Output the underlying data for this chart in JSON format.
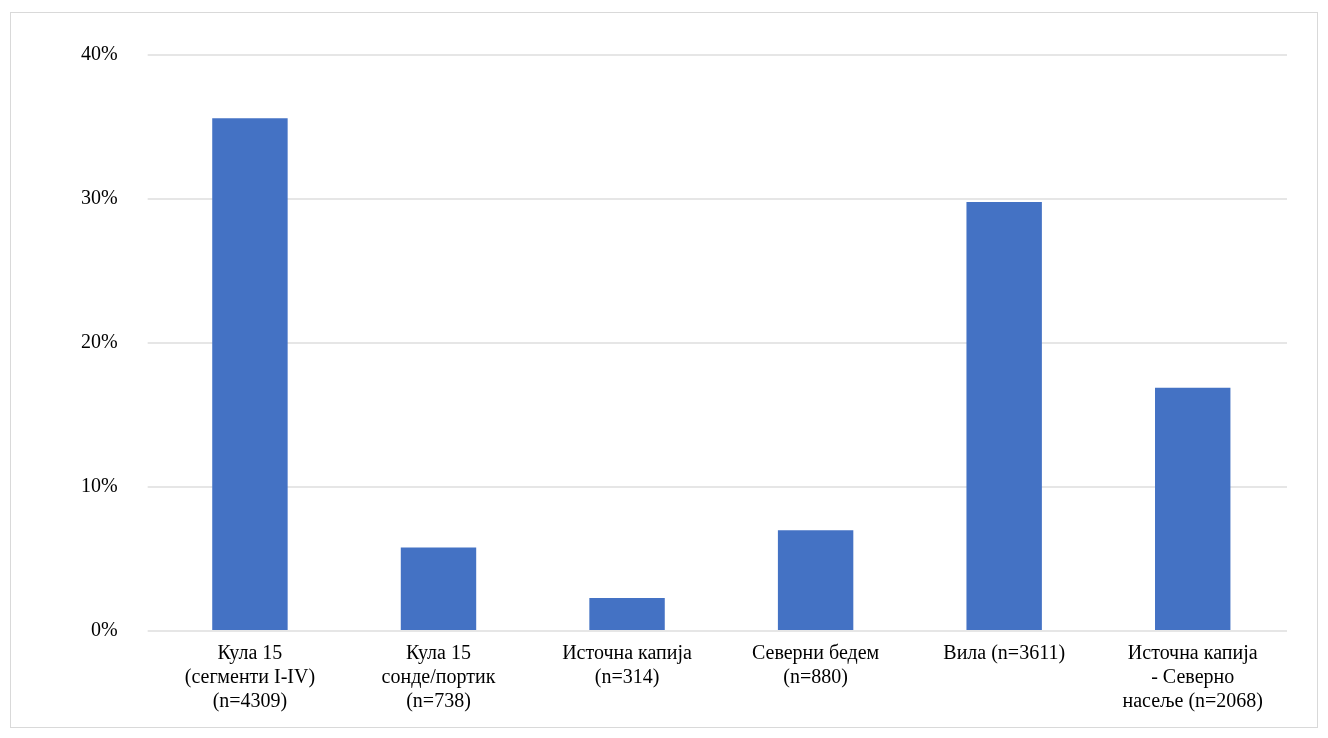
{
  "chart_data": {
    "type": "bar",
    "categories": [
      "Кула 15 (сегменти I-IV) (n=4309)",
      "Кула 15 сонде/портик (n=738)",
      "Источна капија (n=314)",
      "Северни бедем (n=880)",
      "Вила (n=3611)",
      "Источна капија - Северно насеље (n=2068)"
    ],
    "values": [
      35.6,
      5.8,
      2.3,
      7.0,
      29.8,
      16.9
    ],
    "color": "#4472c4",
    "ylim": [
      0,
      40
    ],
    "yticks": [
      {
        "value": 0,
        "label": "0%"
      },
      {
        "value": 10,
        "label": "10%"
      },
      {
        "value": 20,
        "label": "20%"
      },
      {
        "value": 30,
        "label": "30%"
      },
      {
        "value": 40,
        "label": "40%"
      }
    ],
    "grid": "y",
    "legend": false
  }
}
